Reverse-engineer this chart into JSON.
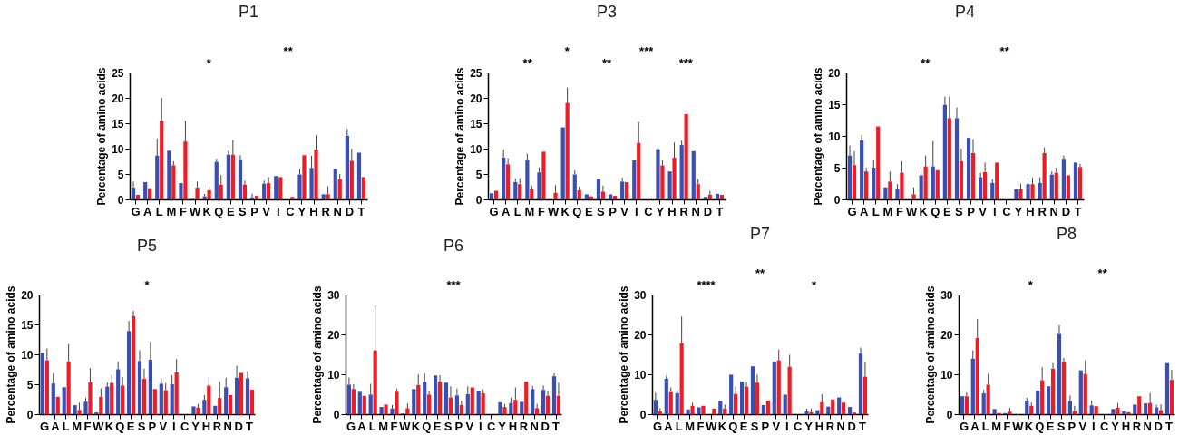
{
  "chart_data": [
    {
      "type": "bar",
      "title": "P1",
      "ylabel": "Percentage of amino acids",
      "categories": [
        "G",
        "A",
        "L",
        "M",
        "F",
        "W",
        "K",
        "Q",
        "E",
        "S",
        "P",
        "V",
        "I",
        "C",
        "Y",
        "H",
        "R",
        "N",
        "D",
        "T"
      ],
      "ylim": [
        0,
        25
      ],
      "yticks": [
        0,
        5,
        10,
        15,
        20,
        25
      ],
      "series": [
        {
          "color": "#3a4fb4",
          "values": [
            2.3,
            3.4,
            8.6,
            9.6,
            3.2,
            0.1,
            0.6,
            7.4,
            8.8,
            7.9,
            0.4,
            3.1,
            4.6,
            0,
            4.9,
            6.2,
            1.0,
            6.0,
            12.5,
            9.2
          ],
          "errors": [
            [
              2.3,
              3.5
            ],
            null,
            [
              8.6,
              12
            ],
            null,
            null,
            null,
            [
              0.6,
              1.1
            ],
            [
              7.4,
              8
            ],
            [
              8.8,
              9.6
            ],
            [
              7.9,
              8.7
            ],
            [
              0.4,
              1.1
            ],
            [
              3.1,
              3.7
            ],
            null,
            null,
            [
              4.9,
              6
            ],
            [
              6.2,
              8.6
            ],
            null,
            null,
            [
              12.5,
              13.9
            ],
            null
          ]
        },
        {
          "color": "#ee1c24",
          "values": [
            0.9,
            2.2,
            15.5,
            6.7,
            11.4,
            2.3,
            1.8,
            2.9,
            8.8,
            2.9,
            0.7,
            3.2,
            4.4,
            0.5,
            8.7,
            9.8,
            1.0,
            4.0,
            7.6,
            4.4
          ],
          "errors": [
            null,
            null,
            [
              15.5,
              20
            ],
            [
              6.7,
              7.5
            ],
            [
              11.4,
              15.5
            ],
            [
              2.3,
              3.5
            ],
            [
              1.8,
              2.6
            ],
            [
              2.9,
              4.8
            ],
            [
              8.8,
              11.7
            ],
            [
              2.9,
              3.7
            ],
            null,
            [
              3.2,
              4.4
            ],
            null,
            null,
            null,
            [
              9.8,
              12.6
            ],
            [
              1.0,
              2.6
            ],
            [
              4.0,
              5.0
            ],
            [
              7.6,
              10
            ],
            null
          ]
        }
      ],
      "annotations": [
        "*",
        "**"
      ]
    },
    {
      "type": "bar",
      "title": "P3",
      "ylabel": "Percentage of amino acids",
      "categories": [
        "G",
        "A",
        "L",
        "M",
        "F",
        "W",
        "K",
        "Q",
        "E",
        "S",
        "P",
        "V",
        "I",
        "C",
        "Y",
        "H",
        "R",
        "N",
        "D",
        "T"
      ],
      "ylim": [
        0,
        25
      ],
      "yticks": [
        0,
        5,
        10,
        15,
        20,
        25
      ],
      "series": [
        {
          "color": "#3a4fb4",
          "values": [
            1.2,
            8.2,
            3.4,
            7.8,
            5.3,
            0,
            14.2,
            4.9,
            1.0,
            4.0,
            1.0,
            3.5,
            7.7,
            0,
            9.9,
            5.5,
            10.7,
            9.5,
            0.5,
            1.1
          ],
          "errors": [
            null,
            [
              8.2,
              9.8
            ],
            [
              3.4,
              4.1
            ],
            [
              7.8,
              9.0
            ],
            [
              5.3,
              6.3
            ],
            null,
            null,
            [
              4.9,
              5.7
            ],
            null,
            null,
            null,
            [
              3.5,
              4.3
            ],
            null,
            null,
            [
              9.9,
              10.7
            ],
            null,
            [
              10.7,
              11.6
            ],
            null,
            null,
            null
          ]
        },
        {
          "color": "#ee1c24",
          "values": [
            1.7,
            6.9,
            3.0,
            2.0,
            9.4,
            1.3,
            19.0,
            1.8,
            0.6,
            1.5,
            0.7,
            3.4,
            11.1,
            0,
            6.7,
            8.2,
            16.8,
            3.0,
            0.9,
            0.9
          ],
          "errors": [
            null,
            [
              6.9,
              8.1
            ],
            [
              3.0,
              4.2
            ],
            [
              2.0,
              2.7
            ],
            null,
            [
              1.3,
              2.8
            ],
            [
              19.0,
              22.0
            ],
            [
              1.8,
              2.5
            ],
            null,
            [
              1.5,
              2.7
            ],
            null,
            null,
            [
              11.1,
              15.2
            ],
            null,
            [
              6.7,
              7.7
            ],
            [
              8.2,
              11.2
            ],
            null,
            [
              3.0,
              4.0
            ],
            [
              0.9,
              1.7
            ],
            null
          ]
        }
      ],
      "annotations": [
        "**",
        "*",
        "**",
        "***",
        "***"
      ]
    },
    {
      "type": "bar",
      "title": "P4",
      "ylabel": "Percentage of amino acids",
      "categories": [
        "G",
        "A",
        "L",
        "M",
        "F",
        "W",
        "K",
        "Q",
        "E",
        "S",
        "P",
        "V",
        "I",
        "C",
        "Y",
        "H",
        "R",
        "N",
        "D",
        "T"
      ],
      "ylim": [
        0,
        20
      ],
      "yticks": [
        0,
        5,
        10,
        15,
        20
      ],
      "series": [
        {
          "color": "#3a4fb4",
          "values": [
            6.9,
            9.3,
            5.0,
            1.9,
            1.7,
            0,
            3.8,
            5.2,
            14.9,
            12.8,
            9.7,
            3.5,
            2.6,
            0,
            1.6,
            2.4,
            2.6,
            3.9,
            6.4,
            5.8
          ],
          "errors": [
            [
              6.9,
              8.5
            ],
            [
              9.3,
              10.2
            ],
            [
              5.0,
              6.3
            ],
            null,
            [
              1.7,
              2.4
            ],
            null,
            [
              3.8,
              4.4
            ],
            [
              5.2,
              9.2
            ],
            [
              14.9,
              16.2
            ],
            [
              12.8,
              14.5
            ],
            null,
            [
              3.5,
              4.2
            ],
            [
              2.6,
              3.2
            ],
            null,
            null,
            [
              2.4,
              3.4
            ],
            [
              2.6,
              3.5
            ],
            [
              3.9,
              4.4
            ],
            [
              6.4,
              6.9
            ],
            null
          ]
        },
        {
          "color": "#ee1c24",
          "values": [
            5.4,
            4.4,
            11.5,
            2.8,
            4.2,
            0.8,
            5.2,
            4.6,
            12.8,
            6.0,
            7.3,
            4.3,
            5.8,
            0,
            1.6,
            2.4,
            7.3,
            4.2,
            3.8,
            5.1
          ],
          "errors": [
            [
              5.4,
              7.6
            ],
            [
              4.4,
              5.0
            ],
            null,
            [
              2.8,
              4.4
            ],
            [
              4.2,
              6.0
            ],
            [
              0.8,
              1.9
            ],
            [
              5.2,
              6.9
            ],
            null,
            [
              12.8,
              16.2
            ],
            [
              6.0,
              8.0
            ],
            [
              7.3,
              9.5
            ],
            [
              4.3,
              5.8
            ],
            null,
            null,
            [
              1.6,
              2.5
            ],
            [
              2.4,
              3.4
            ],
            [
              7.3,
              8.2
            ],
            [
              4.2,
              5.0
            ],
            null,
            [
              5.1,
              5.6
            ]
          ]
        }
      ],
      "annotations": [
        "**",
        "**"
      ]
    },
    {
      "type": "bar",
      "title": "P5",
      "ylabel": "Percentage of amino acids",
      "categories": [
        "G",
        "A",
        "L",
        "M",
        "F",
        "W",
        "K",
        "Q",
        "E",
        "S",
        "P",
        "V",
        "I",
        "C",
        "Y",
        "H",
        "R",
        "N",
        "D",
        "T"
      ],
      "ylim": [
        0,
        20
      ],
      "yticks": [
        0,
        5,
        10,
        15,
        20
      ],
      "series": [
        {
          "color": "#3a4fb4",
          "values": [
            10.3,
            5.1,
            4.5,
            1.5,
            2.1,
            0.3,
            4.6,
            7.5,
            13.9,
            8.9,
            9.1,
            5.1,
            5.0,
            0,
            1.3,
            2.4,
            1.4,
            4.5,
            6.1,
            6.0
          ],
          "errors": [
            null,
            [
              5.1,
              6.8
            ],
            null,
            null,
            [
              2.1,
              2.7
            ],
            null,
            [
              4.6,
              5.3
            ],
            [
              7.5,
              8.8
            ],
            [
              13.9,
              15.6
            ],
            [
              8.9,
              10.7
            ],
            [
              9.1,
              12.1
            ],
            [
              5.1,
              6.1
            ],
            [
              5.0,
              6.5
            ],
            null,
            null,
            [
              2.4,
              3.2
            ],
            null,
            [
              4.5,
              6.1
            ],
            [
              6.1,
              8.1
            ],
            [
              6.0,
              7.2
            ]
          ]
        },
        {
          "color": "#ee1c24",
          "values": [
            9.0,
            2.9,
            8.8,
            0.7,
            5.3,
            2.9,
            5.2,
            4.8,
            16.4,
            5.9,
            4.2,
            4.0,
            7.0,
            0,
            1.1,
            4.8,
            2.7,
            3.2,
            6.9,
            4.1
          ],
          "errors": [
            [
              9.0,
              11.0
            ],
            null,
            [
              8.8,
              11.7
            ],
            [
              0.7,
              1.9
            ],
            [
              5.3,
              7.7
            ],
            [
              2.9,
              4.3
            ],
            [
              5.2,
              6.6
            ],
            [
              4.8,
              6.2
            ],
            [
              16.4,
              17.3
            ],
            [
              5.9,
              7.6
            ],
            null,
            [
              4.0,
              5.2
            ],
            [
              7.0,
              9.2
            ],
            null,
            [
              1.1,
              1.7
            ],
            [
              4.8,
              6.2
            ],
            [
              2.7,
              5.4
            ],
            null,
            null,
            null
          ]
        }
      ],
      "annotations": [
        "*"
      ]
    },
    {
      "type": "bar",
      "title": "P6",
      "ylabel": "Percentage of amino acids",
      "categories": [
        "G",
        "A",
        "L",
        "M",
        "F",
        "W",
        "K",
        "Q",
        "E",
        "S",
        "P",
        "V",
        "I",
        "C",
        "Y",
        "H",
        "R",
        "N",
        "D",
        "T"
      ],
      "ylim": [
        0,
        30
      ],
      "yticks": [
        0,
        10,
        20,
        30
      ],
      "series": [
        {
          "color": "#3a4fb4",
          "values": [
            7.4,
            5.6,
            4.9,
            1.8,
            1.4,
            0.2,
            6.3,
            8.1,
            9.7,
            7.9,
            4.7,
            5.0,
            5.7,
            0,
            3.0,
            2.8,
            3.1,
            6.3,
            6.1,
            9.5
          ],
          "errors": [
            [
              7.4,
              9.2
            ],
            null,
            [
              4.9,
              7.6
            ],
            null,
            [
              1.4,
              2.3
            ],
            null,
            null,
            [
              8.1,
              10.2
            ],
            null,
            null,
            [
              4.7,
              6.4
            ],
            [
              5.0,
              7.0
            ],
            null,
            null,
            null,
            [
              2.8,
              4.1
            ],
            null,
            [
              6.3,
              7.1
            ],
            [
              6.1,
              7.2
            ],
            [
              9.5,
              10.2
            ]
          ]
        },
        {
          "color": "#ee1c24",
          "values": [
            6.3,
            4.6,
            16.0,
            2.4,
            5.6,
            1.5,
            7.3,
            4.9,
            8.2,
            4.2,
            2.3,
            6.7,
            5.2,
            0,
            1.8,
            3.6,
            8.2,
            1.5,
            4.6,
            4.6
          ],
          "errors": [
            [
              6.3,
              7.5
            ],
            null,
            [
              16.0,
              27.3
            ],
            null,
            [
              5.6,
              6.4
            ],
            [
              1.5,
              2.7
            ],
            [
              7.3,
              10.0
            ],
            [
              4.9,
              5.7
            ],
            [
              8.2,
              9.8
            ],
            [
              4.2,
              7.0
            ],
            [
              2.3,
              3.4
            ],
            null,
            [
              5.2,
              6.2
            ],
            null,
            [
              1.8,
              2.6
            ],
            [
              3.6,
              6.7
            ],
            null,
            [
              1.5,
              2.6
            ],
            [
              4.6,
              5.7
            ],
            [
              4.6,
              7.9
            ]
          ]
        }
      ],
      "annotations": [
        "***"
      ]
    },
    {
      "type": "bar",
      "title": "P7",
      "ylabel": "Percentage of amino acids",
      "categories": [
        "G",
        "A",
        "L",
        "M",
        "F",
        "W",
        "K",
        "Q",
        "E",
        "S",
        "P",
        "V",
        "I",
        "C",
        "Y",
        "H",
        "R",
        "N",
        "D",
        "T"
      ],
      "ylim": [
        0,
        30
      ],
      "yticks": [
        0,
        10,
        20,
        30
      ],
      "series": [
        {
          "color": "#3a4fb4",
          "values": [
            3.6,
            8.9,
            5.3,
            1.2,
            1.7,
            0,
            3.3,
            9.9,
            8.2,
            12.0,
            2.3,
            13.2,
            4.9,
            0,
            0.7,
            1.0,
            1.9,
            4.2,
            1.8,
            15.2
          ],
          "errors": [
            [
              3.6,
              5.4
            ],
            [
              8.9,
              9.6
            ],
            [
              5.3,
              6.2
            ],
            null,
            null,
            null,
            null,
            null,
            null,
            null,
            null,
            null,
            null,
            null,
            [
              0.7,
              1.4
            ],
            null,
            null,
            null,
            null,
            [
              15.2,
              16.7
            ]
          ]
        },
        {
          "color": "#ee1c24",
          "values": [
            0.7,
            5.5,
            17.8,
            2.1,
            2.1,
            1.4,
            1.4,
            5.1,
            6.9,
            7.9,
            3.4,
            13.5,
            11.9,
            0,
            0.5,
            3.0,
            3.7,
            2.9,
            0.4,
            9.4
          ],
          "errors": [
            [
              0.7,
              1.5
            ],
            [
              5.5,
              6.7
            ],
            [
              17.8,
              24.5
            ],
            [
              2.1,
              2.9
            ],
            null,
            null,
            [
              1.4,
              2.4
            ],
            [
              5.1,
              6.9
            ],
            [
              6.9,
              8.2
            ],
            [
              7.9,
              9.9
            ],
            null,
            [
              13.5,
              16.2
            ],
            [
              11.9,
              14.9
            ],
            null,
            [
              0.5,
              1.4
            ],
            [
              3.0,
              5.0
            ],
            null,
            null,
            null,
            [
              9.4,
              13.0
            ]
          ]
        }
      ],
      "annotations": [
        "****",
        "**",
        "*"
      ]
    },
    {
      "type": "bar",
      "title": "P8",
      "ylabel": "Percentage of amino acids",
      "categories": [
        "G",
        "A",
        "L",
        "M",
        "F",
        "W",
        "K",
        "Q",
        "E",
        "S",
        "P",
        "V",
        "I",
        "C",
        "Y",
        "H",
        "R",
        "N",
        "D",
        "T"
      ],
      "ylim": [
        0,
        30
      ],
      "yticks": [
        0,
        10,
        20,
        30
      ],
      "series": [
        {
          "color": "#3a4fb4",
          "values": [
            4.5,
            13.9,
            5.2,
            1.3,
            0.3,
            0,
            3.4,
            5.9,
            7.0,
            20.1,
            3.3,
            11.0,
            2.2,
            0,
            1.3,
            0.7,
            2.4,
            2.7,
            1.7,
            12.8
          ],
          "errors": [
            null,
            [
              13.9,
              16.0
            ],
            [
              5.2,
              6.1
            ],
            null,
            null,
            null,
            [
              3.4,
              4.1
            ],
            null,
            null,
            [
              20.1,
              22.3
            ],
            [
              3.3,
              4.7
            ],
            null,
            [
              2.2,
              3.4
            ],
            null,
            null,
            null,
            null,
            null,
            [
              1.7,
              2.4
            ],
            null
          ]
        },
        {
          "color": "#ee1c24",
          "values": [
            4.5,
            19.1,
            7.4,
            0.3,
            0.6,
            0,
            2.1,
            8.5,
            11.4,
            13.1,
            0.8,
            10.1,
            2.0,
            0,
            1.6,
            0.5,
            4.5,
            2.8,
            1.0,
            8.6
          ],
          "errors": [
            [
              4.5,
              5.4
            ],
            [
              19.1,
              23.9
            ],
            [
              7.4,
              10.1
            ],
            null,
            [
              0.6,
              1.6
            ],
            null,
            [
              2.1,
              2.9
            ],
            [
              8.5,
              11.8
            ],
            [
              11.4,
              12.8
            ],
            [
              13.1,
              14.1
            ],
            [
              0.8,
              2.1
            ],
            [
              10.1,
              13.5
            ],
            null,
            null,
            [
              1.6,
              2.8
            ],
            null,
            null,
            [
              2.8,
              5.3
            ],
            [
              1.0,
              2.5
            ],
            [
              8.6,
              11.1
            ]
          ]
        }
      ],
      "annotations": [
        "*",
        "**"
      ]
    }
  ]
}
